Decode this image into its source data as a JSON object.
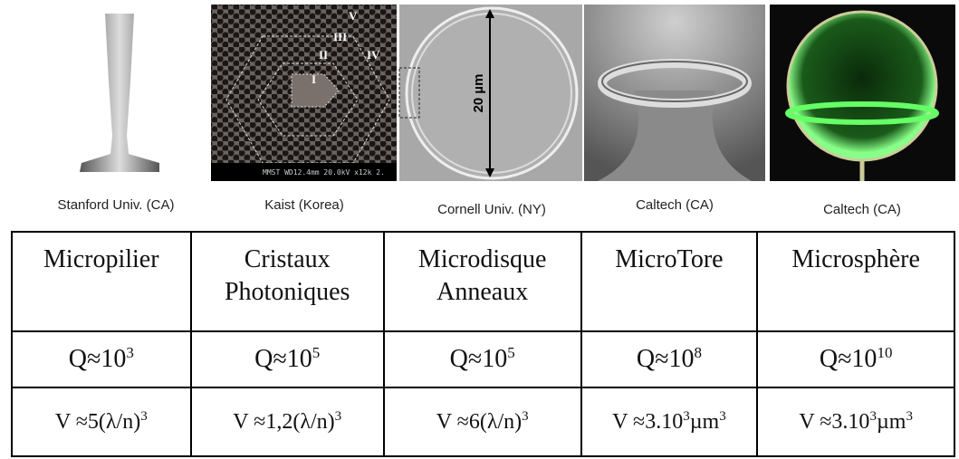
{
  "images": [
    {
      "caption": "Stanford Univ. (CA)"
    },
    {
      "caption": "Kaist (Korea)",
      "labels": [
        "V",
        "III",
        "II",
        "IV",
        "I"
      ],
      "banner": "MMST  WD12.4mm 20.0kV x12k  2."
    },
    {
      "caption": "Cornell Univ. (NY)",
      "labels": [
        "20 µm"
      ]
    },
    {
      "caption": "Caltech (CA)"
    },
    {
      "caption": "Caltech (CA)"
    }
  ],
  "table": {
    "header": [
      [
        "Micropilier"
      ],
      [
        "Cristaux",
        "Photoniques"
      ],
      [
        "Microdisque",
        "Anneaux"
      ],
      [
        "MicroTore"
      ],
      [
        "Microsphère"
      ]
    ],
    "rows": [
      [
        [
          {
            "text": "Q≈10"
          },
          {
            "sup": "3"
          }
        ],
        [
          {
            "text": "Q≈10"
          },
          {
            "sup": "5"
          }
        ],
        [
          {
            "text": "Q≈10"
          },
          {
            "sup": "5"
          }
        ],
        [
          {
            "text": "Q≈10"
          },
          {
            "sup": "8"
          }
        ],
        [
          {
            "text": "Q≈10"
          },
          {
            "sup": "10"
          }
        ]
      ],
      [
        [
          {
            "text": "V ≈5(λ/n)"
          },
          {
            "sup": "3"
          }
        ],
        [
          {
            "text": "V ≈1,2(λ/n)"
          },
          {
            "sup": "3"
          }
        ],
        [
          {
            "text": "V ≈6(λ/n)"
          },
          {
            "sup": "3"
          }
        ],
        [
          {
            "text": "V ≈3.10"
          },
          {
            "sup": "3"
          },
          {
            "text": "µm"
          },
          {
            "sup": "3"
          }
        ],
        [
          {
            "text": "V ≈3.10"
          },
          {
            "sup": "3"
          },
          {
            "text": "µm"
          },
          {
            "sup": "3"
          }
        ]
      ]
    ]
  }
}
